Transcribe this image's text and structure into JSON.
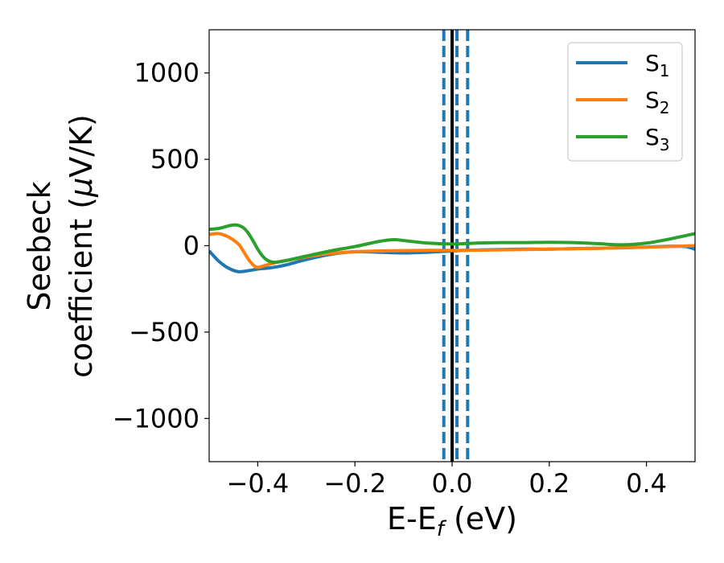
{
  "chart_data": {
    "type": "line",
    "xlabel": "E-E",
    "xlabel_sub": "f",
    "xlabel_unit": " (eV)",
    "ylabel_line1": "Seebeck",
    "ylabel_line2": "coefficient  (",
    "ylabel_mu": "μ",
    "ylabel_unit": "V/K)",
    "xlim": [
      -0.5,
      0.5
    ],
    "ylim": [
      -1250,
      1250
    ],
    "xticks": [
      -0.4,
      -0.2,
      0.0,
      0.2,
      0.4
    ],
    "xtick_labels": [
      "−0.4",
      "−0.2",
      "0.0",
      "0.2",
      "0.4"
    ],
    "yticks": [
      -1000,
      -500,
      0,
      500,
      1000
    ],
    "ytick_labels": [
      "−1000",
      "−500",
      "0",
      "500",
      "1000"
    ],
    "grid": false,
    "legend_position": "top-right",
    "series": [
      {
        "name": "S",
        "sub": "1",
        "color": "#1f77b4",
        "x": [
          -0.5,
          -0.48,
          -0.46,
          -0.44,
          -0.42,
          -0.4,
          -0.38,
          -0.36,
          -0.34,
          -0.3,
          -0.25,
          -0.2,
          -0.15,
          -0.1,
          -0.05,
          0.0,
          0.05,
          0.1,
          0.15,
          0.2,
          0.25,
          0.3,
          0.35,
          0.4,
          0.45,
          0.48,
          0.5
        ],
        "y": [
          -30,
          -90,
          -130,
          -150,
          -145,
          -135,
          -130,
          -122,
          -110,
          -80,
          -50,
          -35,
          -38,
          -42,
          -38,
          -30,
          -25,
          -22,
          -20,
          -20,
          -17,
          -15,
          -12,
          -8,
          -3,
          -5,
          -20
        ]
      },
      {
        "name": "S",
        "sub": "2",
        "color": "#ff7f0e",
        "x": [
          -0.5,
          -0.48,
          -0.46,
          -0.44,
          -0.43,
          -0.42,
          -0.41,
          -0.4,
          -0.38,
          -0.36,
          -0.34,
          -0.3,
          -0.25,
          -0.2,
          -0.15,
          -0.1,
          -0.05,
          0.0,
          0.05,
          0.1,
          0.2,
          0.3,
          0.4,
          0.5
        ],
        "y": [
          65,
          70,
          50,
          10,
          -30,
          -75,
          -110,
          -125,
          -110,
          -95,
          -85,
          -65,
          -45,
          -35,
          -30,
          -28,
          -27,
          -27,
          -26,
          -24,
          -20,
          -15,
          -8,
          0
        ]
      },
      {
        "name": "S",
        "sub": "3",
        "color": "#2ca02c",
        "x": [
          -0.5,
          -0.48,
          -0.46,
          -0.45,
          -0.44,
          -0.43,
          -0.42,
          -0.41,
          -0.4,
          -0.39,
          -0.38,
          -0.37,
          -0.36,
          -0.34,
          -0.3,
          -0.25,
          -0.2,
          -0.15,
          -0.12,
          -0.1,
          -0.05,
          0.0,
          0.05,
          0.1,
          0.15,
          0.2,
          0.25,
          0.3,
          0.35,
          0.4,
          0.45,
          0.5
        ],
        "y": [
          95,
          100,
          115,
          120,
          118,
          105,
          75,
          30,
          -20,
          -60,
          -85,
          -95,
          -95,
          -85,
          -60,
          -30,
          -5,
          25,
          35,
          30,
          15,
          10,
          15,
          18,
          18,
          20,
          18,
          12,
          5,
          15,
          40,
          70
        ]
      }
    ],
    "vlines": [
      {
        "x": 0.0,
        "color": "#000000",
        "style": "solid"
      },
      {
        "x": -0.017,
        "color": "#1f77b4",
        "style": "dashed"
      },
      {
        "x": 0.01,
        "color": "#1f77b4",
        "style": "dashed"
      },
      {
        "x": 0.032,
        "color": "#1f77b4",
        "style": "dashed"
      }
    ]
  }
}
